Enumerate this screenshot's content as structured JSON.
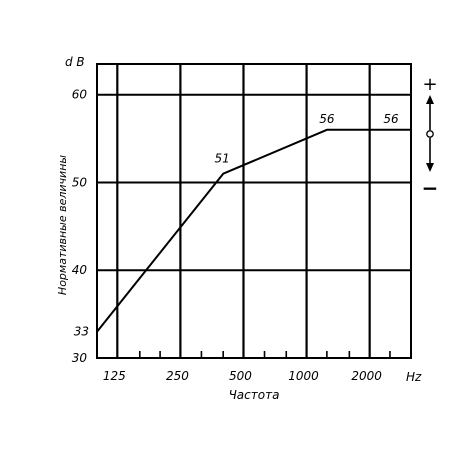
{
  "chart_data": {
    "type": "line",
    "title": "",
    "xlabel": "Частота",
    "ylabel": "Нормативные величины",
    "y_unit": "d B",
    "x_unit": "Hz",
    "x_scale": "log",
    "x_ticks": [
      125,
      250,
      500,
      1000,
      2000
    ],
    "x_tick_labels": [
      "125",
      "250",
      "500",
      "1000",
      "2000"
    ],
    "xlim": [
      100,
      3150
    ],
    "y_ticks": [
      30,
      40,
      50,
      60
    ],
    "y_tick_labels": [
      "30",
      "40",
      "50",
      "60"
    ],
    "ylim": [
      30,
      63.5
    ],
    "grid": true,
    "series": [
      {
        "x": [
          100,
          400,
          1250,
          3150
        ],
        "y": [
          33,
          51,
          56,
          56
        ]
      }
    ],
    "annotations": [
      {
        "text": "33",
        "x": 100,
        "y": 33
      },
      {
        "text": "51",
        "x": 400,
        "y": 51
      },
      {
        "text": "56",
        "x": 1250,
        "y": 56
      },
      {
        "text": "56",
        "x": 3150,
        "y": 56
      }
    ],
    "side_indicator": {
      "plus": "+",
      "minus": "−"
    }
  }
}
